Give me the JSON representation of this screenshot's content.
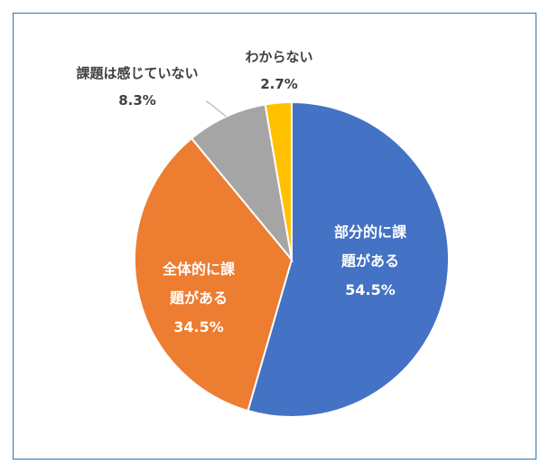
{
  "chart_data": {
    "type": "pie",
    "title": "",
    "categories": [
      "部分的に課題がある",
      "全体的に課題がある",
      "課題は感じていない",
      "わからない"
    ],
    "values": [
      54.5,
      34.5,
      8.3,
      2.7
    ],
    "colors": [
      "#4472c4",
      "#ed7d31",
      "#a5a5a5",
      "#ffc000"
    ],
    "slice_labels": [
      {
        "name_lines": [
          "部分的に課",
          "題がある"
        ],
        "value": "54.5%",
        "color": "#ffffff"
      },
      {
        "name_lines": [
          "全体的に課",
          "題がある"
        ],
        "value": "34.5%",
        "color": "#ffffff"
      },
      {
        "name_lines": [
          "課題は感じていない"
        ],
        "value": "8.3%",
        "color": "#404040"
      },
      {
        "name_lines": [
          "わからない"
        ],
        "value": "2.7%",
        "color": "#404040"
      }
    ],
    "legend": "none"
  }
}
